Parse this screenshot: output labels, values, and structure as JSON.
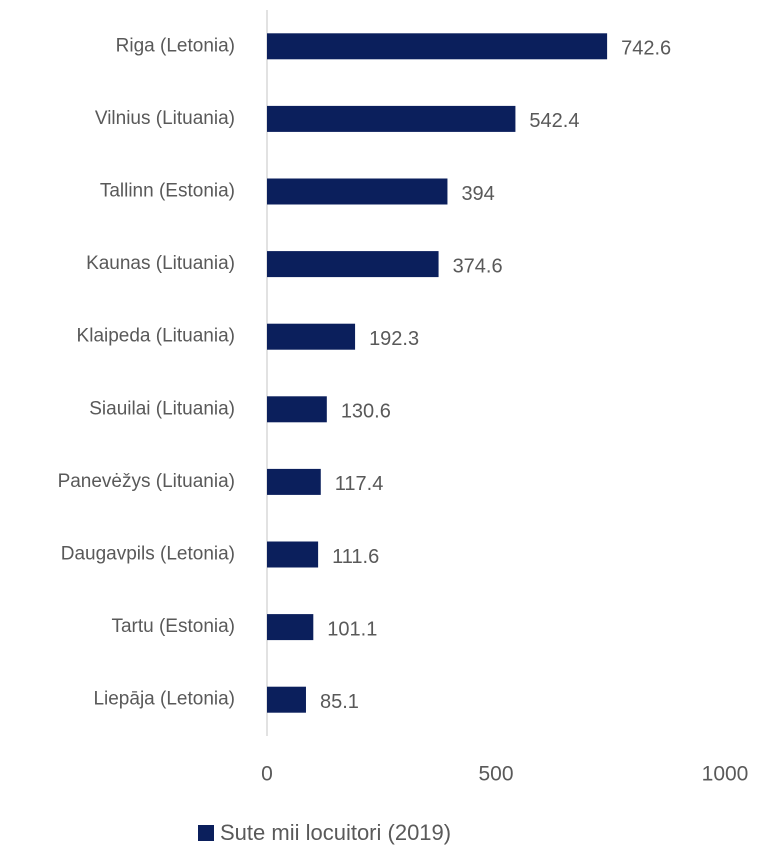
{
  "chart_data": {
    "type": "hbar",
    "categories": [
      "Riga (Letonia)",
      "Vilnius (Lituania)",
      "Tallinn (Estonia)",
      "Kaunas (Lituania)",
      "Klaipeda (Lituania)",
      "Siauilai (Lituania)",
      "Panevėžys (Lituania)",
      "Daugavpils (Letonia)",
      "Tartu (Estonia)",
      "Liepāja (Letonia)"
    ],
    "series": [
      {
        "name": "Sute mii locuitori (2019)",
        "color": "#0b1f5c",
        "values": [
          742.6,
          542.4,
          394,
          374.6,
          192.3,
          130.6,
          117.4,
          111.6,
          101.1,
          85.1
        ]
      }
    ],
    "xlim": [
      0,
      1000
    ],
    "xticks": [
      0,
      500,
      1000
    ],
    "grid": false,
    "legend": "bottom"
  }
}
